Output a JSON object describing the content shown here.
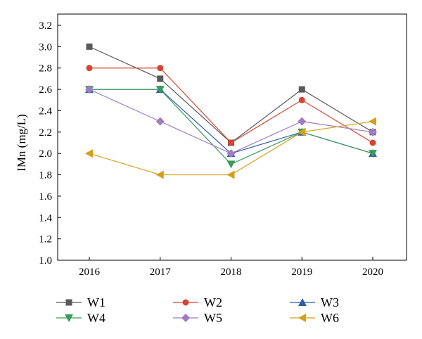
{
  "chart_data": {
    "type": "line",
    "title": "",
    "xlabel": "",
    "ylabel": "IMn (mg/L)",
    "x": [
      "2016",
      "2017",
      "2018",
      "2019",
      "2020"
    ],
    "ylim": [
      1.0,
      3.2
    ],
    "yticks": [
      "1.0",
      "1.2",
      "1.4",
      "1.6",
      "1.8",
      "2.0",
      "2.2",
      "2.4",
      "2.6",
      "2.8",
      "3.0",
      "3.2"
    ],
    "grid": false,
    "legend_position": "bottom",
    "series": [
      {
        "name": "W1",
        "color": "#595959",
        "marker": "square",
        "values": [
          3.0,
          2.7,
          2.1,
          2.6,
          2.2
        ]
      },
      {
        "name": "W2",
        "color": "#d64532",
        "marker": "circle",
        "values": [
          2.8,
          2.8,
          2.1,
          2.5,
          2.1
        ]
      },
      {
        "name": "W3",
        "color": "#2f5ea8",
        "marker": "triangle-up",
        "values": [
          2.6,
          2.6,
          2.0,
          2.2,
          2.0
        ]
      },
      {
        "name": "W4",
        "color": "#3a9a5a",
        "marker": "triangle-down",
        "values": [
          2.6,
          2.6,
          1.9,
          2.2,
          2.0
        ]
      },
      {
        "name": "W5",
        "color": "#a07cc0",
        "marker": "diamond",
        "values": [
          2.6,
          2.3,
          2.0,
          2.3,
          2.2
        ]
      },
      {
        "name": "W6",
        "color": "#d4a017",
        "marker": "triangle-left",
        "values": [
          2.0,
          1.8,
          1.8,
          2.2,
          2.3
        ]
      }
    ]
  }
}
